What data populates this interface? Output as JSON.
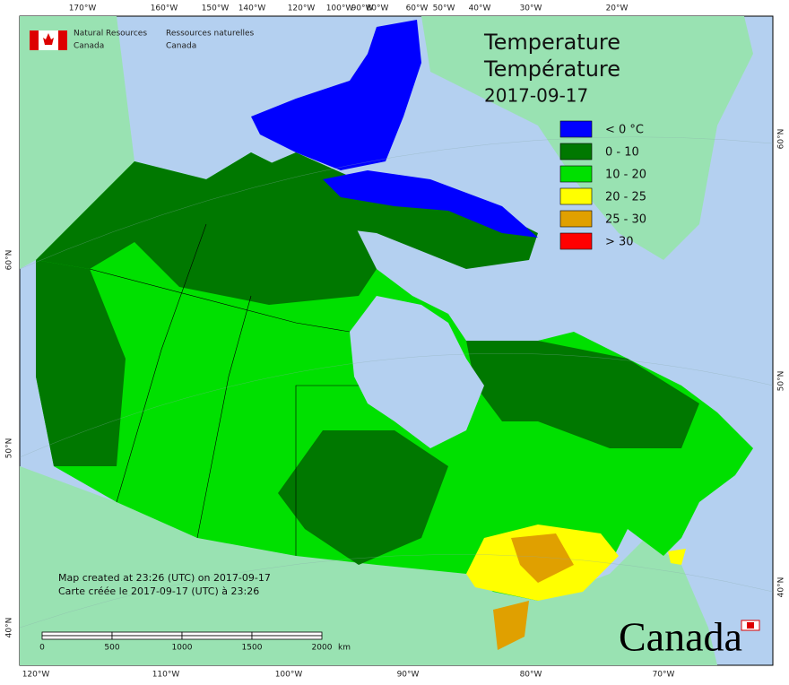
{
  "header": {
    "dept_en": [
      "Natural Resources",
      "Canada"
    ],
    "dept_fr": [
      "Ressources naturelles",
      "Canada"
    ]
  },
  "title": [
    "Temperature",
    "Température",
    "2017-09-17"
  ],
  "legend": [
    {
      "label": "< 0 °C",
      "color": "#0000ff"
    },
    {
      "label": "0 - 10",
      "color": "#007800"
    },
    {
      "label": "10 - 20",
      "color": "#00e000"
    },
    {
      "label": "20 - 25",
      "color": "#ffff00"
    },
    {
      "label": "25 - 30",
      "color": "#e0a000"
    },
    {
      "label": "> 30",
      "color": "#ff0000"
    }
  ],
  "top_labels": [
    "170°W",
    "160°W",
    "150°W",
    "140°W",
    "120°W",
    "100°W",
    "90°W",
    "80°W",
    "60°W",
    "50°W",
    "40°W",
    "30°W",
    "20°W"
  ],
  "bottom_labels": [
    "120°W",
    "110°W",
    "100°W",
    "90°W",
    "80°W",
    "70°W"
  ],
  "left_labels": [
    "60°N",
    "50°N",
    "40°N"
  ],
  "right_labels": [
    "60°N",
    "50°N",
    "40°N"
  ],
  "credits": [
    "Map created at 23:26 (UTC) on 2017-09-17",
    "Carte créée le 2017-09-17 (UTC) à 23:26"
  ],
  "scale": {
    "ticks": [
      "0",
      "500",
      "1000",
      "1500",
      "2000"
    ],
    "unit": "km"
  },
  "wordmark": "Canada"
}
